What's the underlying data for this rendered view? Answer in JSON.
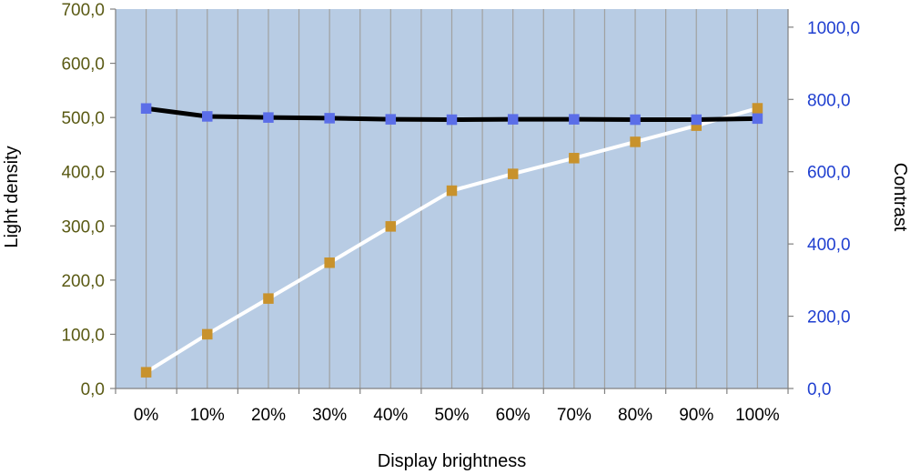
{
  "chart_data": {
    "type": "line",
    "title": "",
    "xlabel": "Display brightness",
    "ylabel": "Light density",
    "y2label": "Contrast",
    "categories": [
      "0%",
      "10%",
      "20%",
      "30%",
      "40%",
      "50%",
      "60%",
      "70%",
      "80%",
      "90%",
      "100%"
    ],
    "ylim": [
      0,
      700
    ],
    "y2lim": [
      0,
      1050
    ],
    "yticks": [
      "0,0",
      "100,0",
      "200,0",
      "300,0",
      "400,0",
      "500,0",
      "600,0",
      "700,0"
    ],
    "y2ticks": [
      "0,0",
      "200,0",
      "400,0",
      "600,0",
      "800,0",
      "1000,0"
    ],
    "grid": "vertical",
    "legend": "none",
    "series": [
      {
        "axis": "left",
        "values": [
          30,
          100,
          166,
          232,
          299,
          365,
          396,
          425,
          455,
          485,
          517
        ],
        "line_color": "#ffffff",
        "marker_color": "#c8922c"
      },
      {
        "axis": "right",
        "values": [
          775,
          753,
          750,
          748,
          745,
          744,
          745,
          745,
          744,
          744,
          747
        ],
        "line_color": "#000000",
        "marker_color": "#5b6ee8"
      }
    ],
    "colors": {
      "plot_background": "#b8cce4",
      "gridline": "#a0a0a0",
      "left_tick_text": "#5a5a14",
      "right_tick_text": "#1f3fd0"
    }
  }
}
